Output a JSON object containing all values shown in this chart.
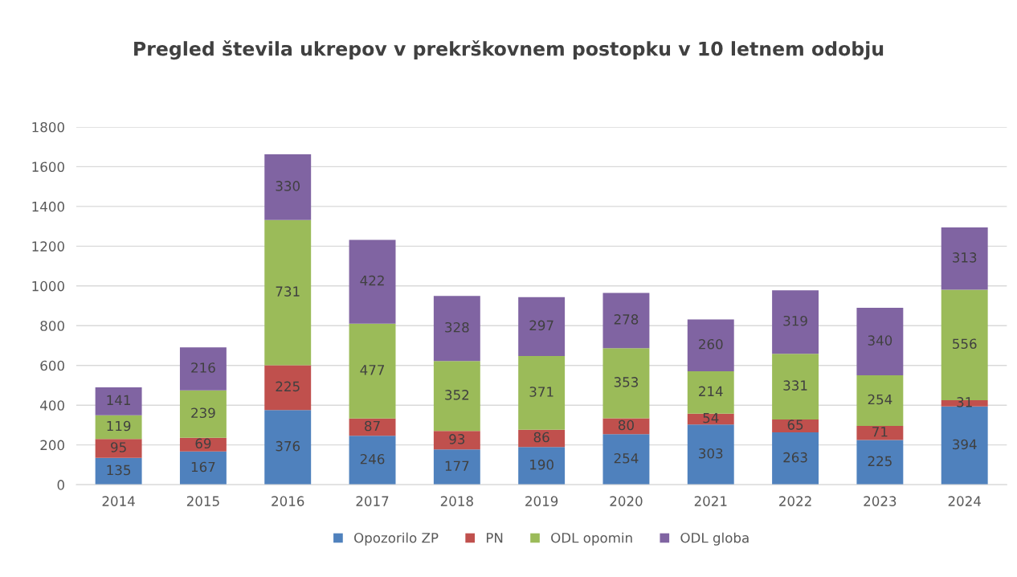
{
  "chart_data": {
    "type": "bar",
    "stacked": true,
    "title": "Pregled števila ukrepov v prekrškovnem postopku v 10 letnem odobju",
    "categories": [
      "2014",
      "2015",
      "2016",
      "2017",
      "2018",
      "2019",
      "2020",
      "2021",
      "2022",
      "2023",
      "2024"
    ],
    "series": [
      {
        "name": "Opozorilo ZP",
        "color": "#4f81bd",
        "values": [
          135,
          167,
          376,
          246,
          177,
          190,
          254,
          303,
          263,
          225,
          394
        ]
      },
      {
        "name": "PN",
        "color": "#c0504d",
        "values": [
          95,
          69,
          225,
          87,
          93,
          86,
          80,
          54,
          65,
          71,
          31
        ]
      },
      {
        "name": "ODL opomin",
        "color": "#9bbb59",
        "values": [
          119,
          239,
          731,
          477,
          352,
          371,
          353,
          214,
          331,
          254,
          556
        ]
      },
      {
        "name": "ODL globa",
        "color": "#8064a2",
        "values": [
          141,
          216,
          330,
          422,
          328,
          297,
          278,
          260,
          319,
          340,
          313
        ]
      }
    ],
    "ylim": [
      0,
      1800
    ],
    "yticks": [
      0,
      200,
      400,
      600,
      800,
      1000,
      1200,
      1400,
      1600,
      1800
    ],
    "grid": "y",
    "legend": "bottom",
    "data_labels": true
  }
}
